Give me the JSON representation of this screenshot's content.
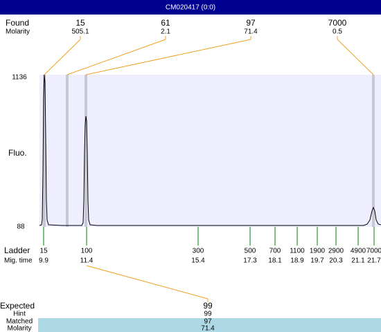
{
  "title": "CM020417 (0:0)",
  "found": {
    "label": "Found",
    "molarity_label": "Molarity",
    "peaks": [
      {
        "size": 15,
        "molarity": 505.1
      },
      {
        "size": 61,
        "molarity": 2.1
      },
      {
        "size": 97,
        "molarity": 71.4
      },
      {
        "size": 7000,
        "molarity": 0.5
      }
    ]
  },
  "axis": {
    "label": "Fluo.",
    "top": 1136,
    "bottom": 88
  },
  "ladder": {
    "label": "Ladder",
    "time_label": "Mig. time",
    "peaks": [
      {
        "size": 15,
        "time": 9.9
      },
      {
        "size": 100,
        "time": 11.4
      },
      {
        "size": 300,
        "time": 15.4
      },
      {
        "size": 500,
        "time": 17.3
      },
      {
        "size": 700,
        "time": 18.1
      },
      {
        "size": 1100,
        "time": 18.9
      },
      {
        "size": 1900,
        "time": 19.7
      },
      {
        "size": 2900,
        "time": 20.3
      },
      {
        "size": 4900,
        "time": 21.1
      },
      {
        "size": 7000,
        "time": 21.7
      }
    ]
  },
  "expected": {
    "label": "Expected",
    "value": 99,
    "hint_label": "Hint",
    "hint": 99,
    "matched_label": "Matched",
    "matched": 97,
    "molarity_label": "Molarity",
    "molarity": 71.4
  }
}
